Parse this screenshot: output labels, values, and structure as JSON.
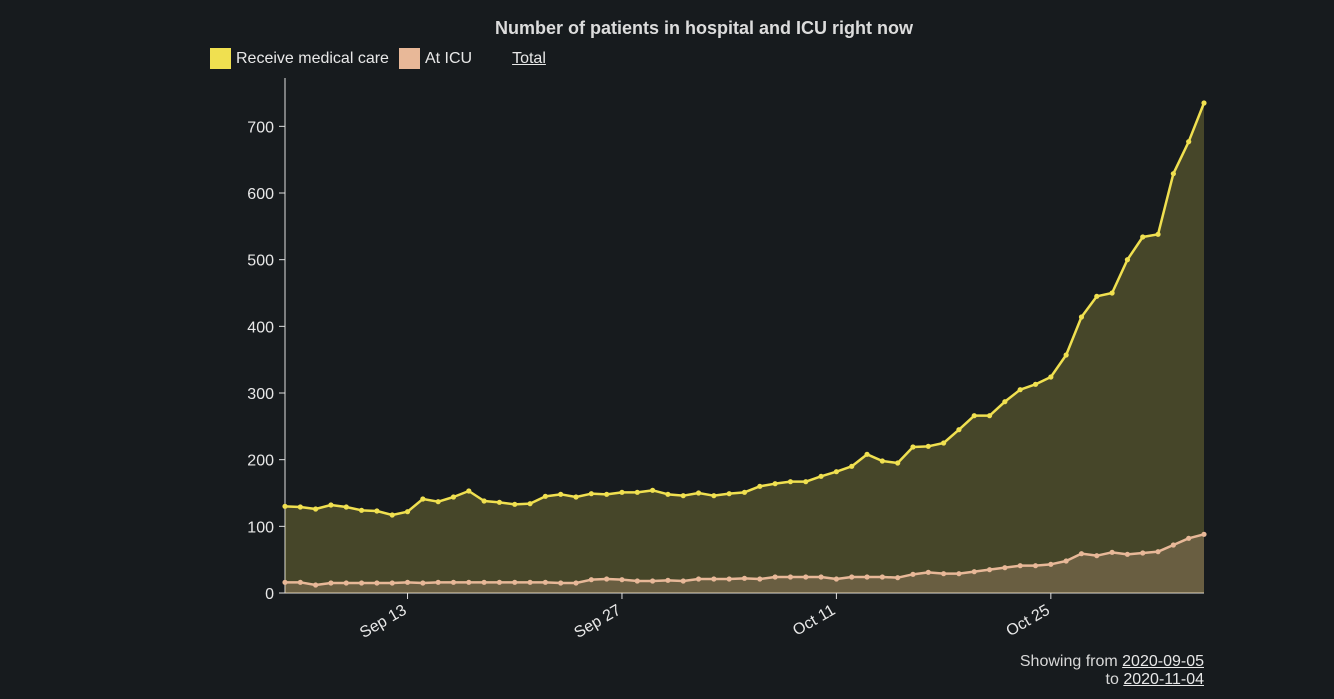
{
  "chart_data": {
    "type": "area",
    "title": "Number of patients in hospital and ICU right now",
    "legend_position": "top-left",
    "legend": [
      {
        "name": "Receive medical care",
        "color": "#f0e050"
      },
      {
        "name": "At ICU",
        "color": "#e8b898"
      }
    ],
    "legend_extra": "Total",
    "ylim": [
      0,
      750
    ],
    "yticks": [
      0,
      100,
      200,
      300,
      400,
      500,
      600,
      700
    ],
    "x_start": "2020-09-05",
    "x_end": "2020-11-04",
    "xticks": [
      {
        "label": "Sep 13",
        "date": "2020-09-13"
      },
      {
        "label": "Sep 27",
        "date": "2020-09-27"
      },
      {
        "label": "Oct 11",
        "date": "2020-10-11"
      },
      {
        "label": "Oct 25",
        "date": "2020-10-25"
      }
    ],
    "grid": false,
    "series": [
      {
        "name": "Receive medical care",
        "color": "#f0e050",
        "values": [
          130,
          129,
          126,
          132,
          129,
          124,
          123,
          117,
          122,
          141,
          137,
          144,
          153,
          138,
          136,
          133,
          134,
          145,
          148,
          144,
          149,
          148,
          151,
          151,
          154,
          148,
          146,
          150,
          146,
          149,
          151,
          160,
          164,
          167,
          167,
          175,
          182,
          190,
          208,
          198,
          195,
          219,
          220,
          225,
          245,
          266,
          266,
          287,
          305,
          313,
          324,
          357,
          414,
          445,
          450,
          500,
          534,
          538,
          629,
          677,
          735
        ]
      },
      {
        "name": "At ICU",
        "color": "#e8b898",
        "values": [
          16,
          16,
          12,
          15,
          15,
          15,
          15,
          15,
          16,
          15,
          16,
          16,
          16,
          16,
          16,
          16,
          16,
          16,
          15,
          15,
          20,
          21,
          20,
          18,
          18,
          19,
          18,
          21,
          21,
          21,
          22,
          21,
          24,
          24,
          24,
          24,
          21,
          24,
          24,
          24,
          23,
          28,
          31,
          29,
          29,
          32,
          35,
          38,
          41,
          41,
          43,
          48,
          59,
          56,
          61,
          58,
          60,
          62,
          72,
          82,
          88
        ]
      }
    ]
  },
  "footer": {
    "showing_from_label": "Showing from",
    "from_date": "2020-09-05",
    "to_label": "to",
    "to_date": "2020-11-04"
  }
}
